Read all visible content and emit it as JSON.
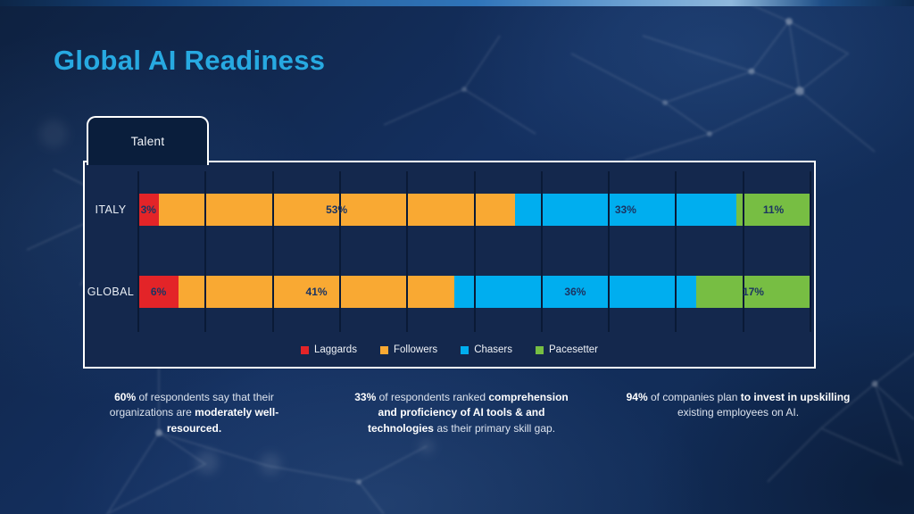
{
  "slide": {
    "title": "Global AI Readiness"
  },
  "tabs": [
    {
      "label": "Talent"
    }
  ],
  "chart_data": {
    "type": "bar",
    "variant": "horizontal-stacked",
    "categories": [
      "ITALY",
      "GLOBAL"
    ],
    "series": [
      {
        "name": "Laggards",
        "color": "#E32428",
        "values": [
          3,
          6
        ]
      },
      {
        "name": "Followers",
        "color": "#F9A933",
        "values": [
          53,
          41
        ]
      },
      {
        "name": "Chasers",
        "color": "#00AEEF",
        "values": [
          33,
          36
        ]
      },
      {
        "name": "Pacesetter",
        "color": "#77BE43",
        "values": [
          11,
          17
        ]
      }
    ],
    "value_label_suffix": "%",
    "xlim": [
      0,
      100
    ],
    "gridline_interval": 10,
    "grid": true,
    "legend_position": "bottom-center"
  },
  "callouts": [
    {
      "segments": [
        {
          "text": "60%",
          "bold": true
        },
        {
          "text": " of respondents say that their organizations are ",
          "bold": false
        },
        {
          "text": "moderately well-resourced.",
          "bold": true
        }
      ]
    },
    {
      "segments": [
        {
          "text": "33%",
          "bold": true
        },
        {
          "text": " of respondents ranked ",
          "bold": false
        },
        {
          "text": "comprehension and proficiency of AI tools & and technologies",
          "bold": true
        },
        {
          "text": " as their primary skill gap.",
          "bold": false
        }
      ]
    },
    {
      "segments": [
        {
          "text": "94%",
          "bold": true
        },
        {
          "text": " of companies plan ",
          "bold": false
        },
        {
          "text": "to invest in upskilling",
          "bold": true
        },
        {
          "text": " existing employees on AI.",
          "bold": false
        }
      ]
    }
  ],
  "colors": {
    "title": "#27A9E1",
    "panel_bg": "#14284D",
    "tab_bg": "#0A1E3C",
    "gridline": "#0A1A36",
    "bar_label": "#1B3462",
    "legend_text": "#F0F3F8"
  }
}
